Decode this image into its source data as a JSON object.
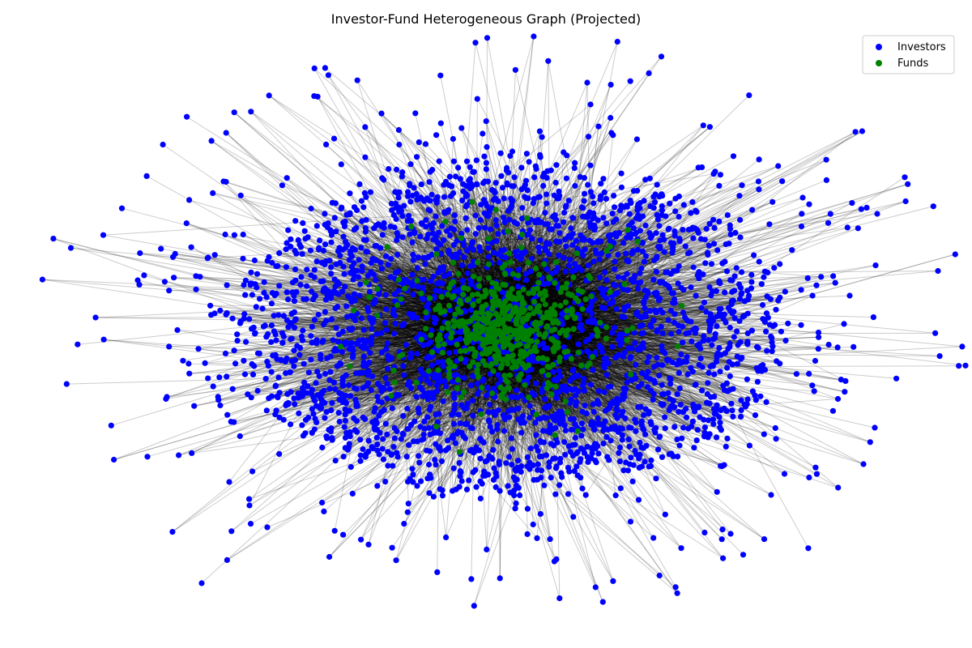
{
  "title": "Investor-Fund Heterogeneous Graph (Projected)",
  "legend": {
    "placement": "top-right",
    "items": [
      {
        "label": "Investors",
        "color": "#0000ff"
      },
      {
        "label": "Funds",
        "color": "#008000"
      }
    ]
  },
  "graph": {
    "node_types": [
      "Investors",
      "Funds"
    ],
    "edge_color": "#000000",
    "edge_opacity": 0.2,
    "background": "#ffffff"
  }
}
